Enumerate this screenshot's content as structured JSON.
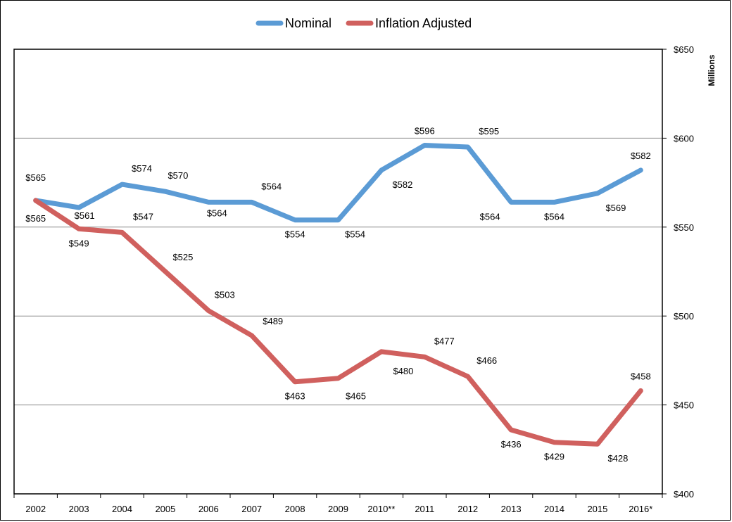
{
  "chart_data": {
    "type": "line",
    "title": "",
    "xlabel": "",
    "ylabel": "Millions",
    "ylim": [
      400,
      650
    ],
    "yticks": [
      400,
      450,
      500,
      550,
      600,
      650
    ],
    "ytick_labels": [
      "$400",
      "$450",
      "$500",
      "$550",
      "$600",
      "$650"
    ],
    "grid": "horizontal",
    "legend_position": "top-center",
    "categories": [
      "2002",
      "2003",
      "2004",
      "2005",
      "2006",
      "2007",
      "2008",
      "2009",
      "2010**",
      "2011",
      "2012",
      "2013",
      "2014",
      "2015",
      "2016*"
    ],
    "series": [
      {
        "name": "Nominal",
        "color": "#5B9BD5",
        "values": [
          565,
          561,
          574,
          570,
          564,
          564,
          554,
          554,
          582,
          596,
          595,
          564,
          564,
          569,
          582
        ],
        "labels": [
          "$565",
          "$561",
          "$574",
          "$570",
          "$564",
          "$564",
          "$554",
          "$554",
          "$582",
          "$596",
          "$595",
          "$564",
          "$564",
          "$569",
          "$582"
        ]
      },
      {
        "name": "Inflation Adjusted",
        "color": "#D0605E",
        "values": [
          565,
          549,
          547,
          525,
          503,
          489,
          463,
          465,
          480,
          477,
          466,
          436,
          429,
          428,
          458
        ],
        "labels": [
          "$565",
          "$549",
          "$547",
          "$525",
          "$503",
          "$489",
          "$463",
          "$465",
          "$480",
          "$477",
          "$466",
          "$436",
          "$429",
          "$428",
          "$458"
        ]
      }
    ]
  }
}
